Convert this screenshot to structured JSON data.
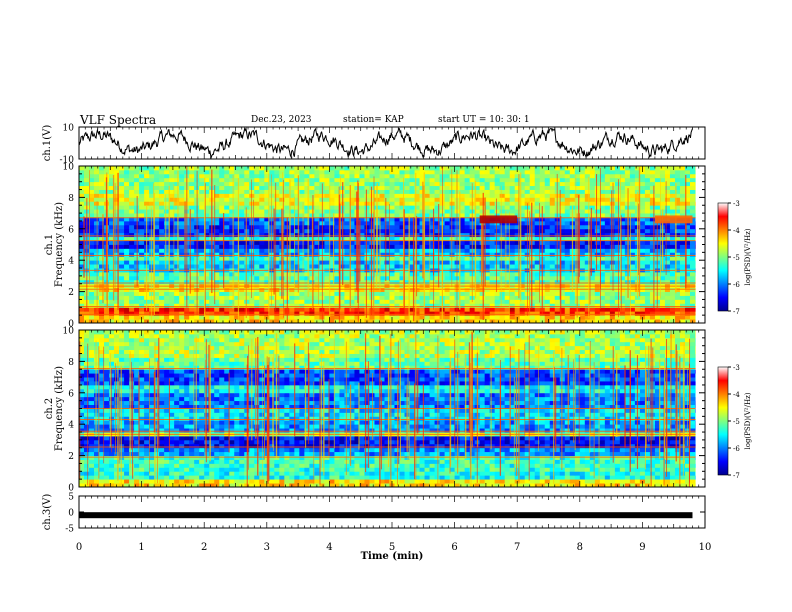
{
  "header": {
    "title": "VLF Spectra",
    "date": "Dec.23, 2023",
    "station": "station= KAP",
    "start": "start  UT  =   10: 30: 1"
  },
  "chart_data": [
    {
      "type": "line",
      "panel": "ch1-waveform",
      "ylabel": "ch.1(V)",
      "ylim": [
        -10,
        10
      ],
      "yticks": [
        "10",
        "-10"
      ],
      "xlim": [
        0,
        10
      ],
      "xunit": "min",
      "signal": "noisy waveform, roughly ±5 V around 0",
      "color": "#000000"
    },
    {
      "type": "heatmap",
      "panel": "ch1-spectrogram",
      "ylabel": "ch.1\nFrequency (kHz)",
      "ylabel_line1": "ch.1",
      "ylabel_line2": "Frequency (kHz)",
      "ylim": [
        0,
        10
      ],
      "yticks": [
        "0",
        "2",
        "4",
        "6",
        "8",
        "10"
      ],
      "xlim": [
        0,
        10
      ],
      "colorbar": {
        "label": "log(PSD)(V²/Hz)",
        "range": [
          -7,
          -3
        ],
        "ticks": [
          "-3",
          "-4",
          "-5",
          "-6",
          "-7"
        ]
      },
      "bands": [
        {
          "from": 0.0,
          "to": 0.6,
          "level": -4.4
        },
        {
          "from": 0.6,
          "to": 1.0,
          "level": -3.7
        },
        {
          "from": 1.0,
          "to": 1.9,
          "level": -4.9
        },
        {
          "from": 1.9,
          "to": 2.5,
          "level": -4.5
        },
        {
          "from": 2.5,
          "to": 3.3,
          "level": -5.2
        },
        {
          "from": 3.3,
          "to": 3.9,
          "level": -5.7
        },
        {
          "from": 3.9,
          "to": 4.2,
          "level": -5.2
        },
        {
          "from": 4.2,
          "to": 4.8,
          "level": -5.8
        },
        {
          "from": 4.8,
          "to": 5.2,
          "level": -6.4
        },
        {
          "from": 5.2,
          "to": 5.6,
          "level": -5.3
        },
        {
          "from": 5.6,
          "to": 6.3,
          "level": -6.3
        },
        {
          "from": 6.3,
          "to": 6.7,
          "level": -6.1
        },
        {
          "from": 6.7,
          "to": 7.6,
          "level": -5.0
        },
        {
          "from": 7.6,
          "to": 8.3,
          "level": -4.6
        },
        {
          "from": 8.3,
          "to": 10.0,
          "level": -4.9
        }
      ],
      "lines_khz": [
        0.55,
        1.05,
        2.15,
        2.35,
        2.55,
        3.35,
        4.3,
        5.25,
        5.55,
        6.7
      ],
      "event": {
        "t_from": 6.4,
        "t_to": 7.0,
        "f": 6.6,
        "level": -3.2
      },
      "event2": {
        "t_from": 9.2,
        "t_to": 9.8,
        "f": 6.6,
        "level": -3.9
      }
    },
    {
      "type": "heatmap",
      "panel": "ch2-spectrogram",
      "ylabel": "ch.2\nFrequency (kHz)",
      "ylabel_line1": "ch.2",
      "ylabel_line2": "Frequency (kHz)",
      "ylim": [
        0,
        10
      ],
      "yticks": [
        "0",
        "2",
        "4",
        "6",
        "8",
        "10"
      ],
      "xlim": [
        0,
        10
      ],
      "colorbar": {
        "label": "log(PSD)(V²/Hz)",
        "range": [
          -7,
          -3
        ],
        "ticks": [
          "-3",
          "-4",
          "-5",
          "-6",
          "-7"
        ]
      },
      "bands": [
        {
          "from": 0.0,
          "to": 0.4,
          "level": -4.4
        },
        {
          "from": 0.4,
          "to": 1.0,
          "level": -5.4
        },
        {
          "from": 1.0,
          "to": 1.9,
          "level": -5.3
        },
        {
          "from": 1.9,
          "to": 2.6,
          "level": -5.9
        },
        {
          "from": 2.6,
          "to": 3.2,
          "level": -6.5
        },
        {
          "from": 3.2,
          "to": 3.5,
          "level": -4.8
        },
        {
          "from": 3.5,
          "to": 4.2,
          "level": -5.9
        },
        {
          "from": 4.2,
          "to": 5.0,
          "level": -5.6
        },
        {
          "from": 5.0,
          "to": 6.0,
          "level": -6.0
        },
        {
          "from": 6.0,
          "to": 6.4,
          "level": -5.5
        },
        {
          "from": 6.4,
          "to": 7.5,
          "level": -6.2
        },
        {
          "from": 7.5,
          "to": 8.2,
          "level": -5.1
        },
        {
          "from": 8.2,
          "to": 10.0,
          "level": -4.8
        }
      ],
      "lines_khz": [
        1.9,
        2.55,
        3.35,
        3.55,
        4.3,
        5.0,
        7.55
      ],
      "event": null,
      "event2": null
    },
    {
      "type": "line",
      "panel": "ch3-waveform",
      "ylabel": "ch.3(V)",
      "ylim": [
        -5,
        5
      ],
      "yticks": [
        "5",
        "0",
        "-5"
      ],
      "xlim": [
        0,
        10
      ],
      "signal": "constant, approximately -1 V (thick black band)",
      "value": -1.0,
      "color": "#000000"
    }
  ],
  "xaxis": {
    "label": "Time  (min)",
    "ticks": [
      "0",
      "1",
      "2",
      "3",
      "4",
      "5",
      "6",
      "7",
      "8",
      "9",
      "10"
    ]
  }
}
